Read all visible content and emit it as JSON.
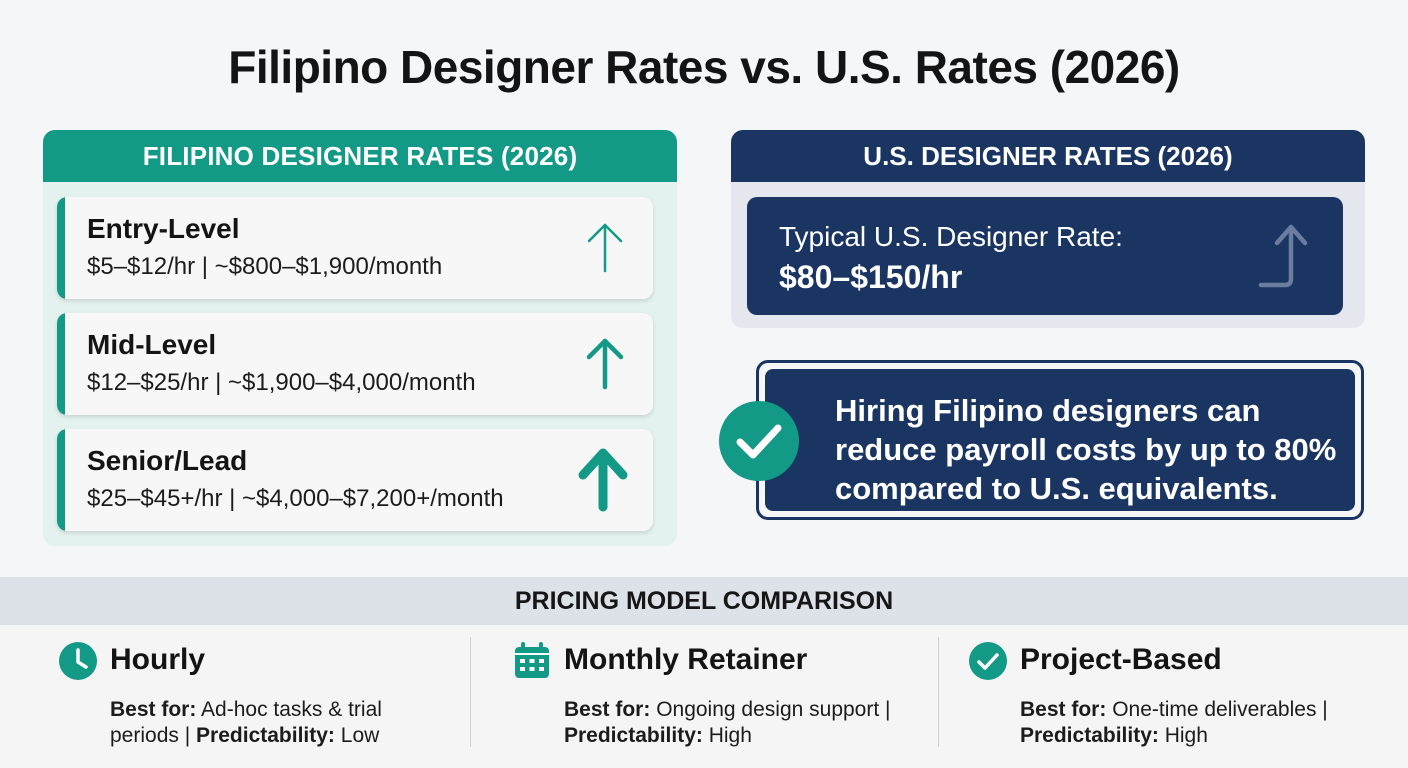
{
  "title": "Filipino Designer Rates vs. U.S. Rates (2026)",
  "filipino": {
    "header": "FILIPINO DESIGNER RATES (2026)",
    "tiers": [
      {
        "name": "Entry-Level",
        "rate": "$5–$12/hr | ~$800–$1,900/month"
      },
      {
        "name": "Mid-Level",
        "rate": "$12–$25/hr | ~$1,900–$4,000/month"
      },
      {
        "name": "Senior/Lead",
        "rate": "$25–$45+/hr | ~$4,000–$7,200+/month"
      }
    ]
  },
  "us": {
    "header": "U.S. DESIGNER RATES (2026)",
    "label": "Typical U.S. Designer Rate:",
    "value": "$80–$150/hr"
  },
  "savings": {
    "text": "Hiring Filipino designers can reduce payroll costs by up to 80% compared to U.S. equivalents."
  },
  "pricing": {
    "header": "PRICING MODEL COMPARISON",
    "best_for_label": "Best for:",
    "predictability_label": "Predictability:",
    "models": [
      {
        "name": "Hourly",
        "icon": "clock-icon",
        "best_for": "Ad-hoc tasks & trial periods",
        "predictability": "Low"
      },
      {
        "name": "Monthly Retainer",
        "icon": "calendar-icon",
        "best_for": "Ongoing design support",
        "predictability": "High"
      },
      {
        "name": "Project-Based",
        "icon": "check-circle-icon",
        "best_for": "One-time deliverables",
        "predictability": "High"
      }
    ]
  },
  "colors": {
    "teal": "#139a86",
    "navy": "#1b3563",
    "light_teal_bg": "#e3f1ef"
  }
}
